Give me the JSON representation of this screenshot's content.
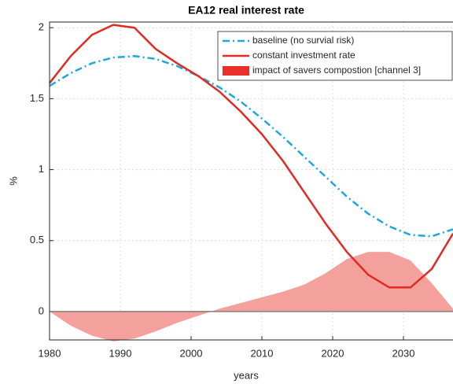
{
  "chart_data": {
    "type": "line",
    "title": "EA12 real interest rate",
    "xlabel": "years",
    "ylabel": "%",
    "x": [
      1980,
      1983,
      1986,
      1989,
      1992,
      1995,
      1998,
      2001,
      2004,
      2007,
      2010,
      2013,
      2016,
      2019,
      2022,
      2025,
      2028,
      2031,
      2034,
      2037
    ],
    "series": [
      {
        "name": "baseline (no survial risk)",
        "color": "#1ca8dd",
        "style": "dashdot",
        "values": [
          1.59,
          1.68,
          1.75,
          1.79,
          1.8,
          1.78,
          1.73,
          1.66,
          1.58,
          1.48,
          1.36,
          1.23,
          1.09,
          0.95,
          0.81,
          0.69,
          0.6,
          0.54,
          0.53,
          0.58
        ]
      },
      {
        "name": "constant investment rate",
        "color": "#e02a22",
        "style": "solid",
        "values": [
          1.61,
          1.8,
          1.95,
          2.02,
          2.0,
          1.85,
          1.75,
          1.66,
          1.55,
          1.41,
          1.25,
          1.06,
          0.84,
          0.62,
          0.42,
          0.26,
          0.17,
          0.17,
          0.3,
          0.55
        ]
      },
      {
        "name": "impact of savers compostion [channel 3]",
        "color": "#f4a09c",
        "legend_color": "#e8312a",
        "style": "area",
        "values": [
          0,
          -0.1,
          -0.17,
          -0.21,
          -0.19,
          -0.14,
          -0.08,
          -0.03,
          0.02,
          0.06,
          0.1,
          0.14,
          0.19,
          0.27,
          0.37,
          0.42,
          0.42,
          0.36,
          0.2,
          0.02
        ]
      }
    ],
    "xlim": [
      1980,
      2037
    ],
    "xticks": [
      1980,
      1990,
      2000,
      2010,
      2020,
      2030
    ],
    "ylim": [
      -0.2,
      2.04
    ],
    "yticks": [
      0,
      0.5,
      1,
      1.5,
      2
    ],
    "grid": true,
    "legend": "upper right"
  }
}
